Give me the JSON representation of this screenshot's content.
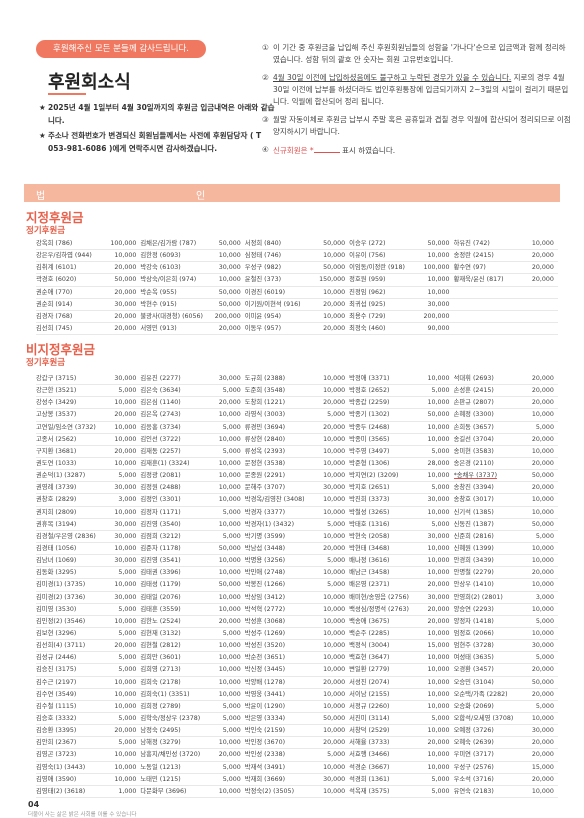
{
  "header": {
    "badge": "후원해주신 모든 분들께 감사드립니다.",
    "title": "후원회소식",
    "note1": "2025년 4월 1일부터 4월 30일까지의 후원금 입금내역은 아래와 같습니다.",
    "note2": "주소나 전화번호가 변경되신 회원님들께서는 사전에 후원담당자 ( T 053-981-6086 )에게 연락주시면 감사하겠습니다.",
    "star": "★"
  },
  "notes": {
    "n1": {
      "num": "①",
      "text": "이 기간 중 후원금을 납입해 주신 후원회원님들의 성함을 '가나다'순으로 입금액과 함께 정리하였습니다. 성함 뒤의 괄호 안 숫자는 회원 고유번호입니다."
    },
    "n2": {
      "num": "②",
      "under": "4월 30일 이전에 납입하셨음에도 불구하고 누락된 경우가 있을 수 있습니다.",
      "text": "지로의 경우 4월 30일 이전에 납부를 하셨더라도 법인후원통장에 입금되기까지 2~3일의 시일이 걸리기 때문입니다. 익월에 합산되어 정리 됩니다."
    },
    "n3": {
      "num": "③",
      "text": "월말 자동이체로 후원금 납부시 주말 혹은 공휴일과 겹칠 경우 익월에 합산되어 정리되므로 이점 양지하시기 바랍니다."
    },
    "n4": {
      "num": "④",
      "pre": "신규회원은 *",
      "post": "표시 하였습니다."
    }
  },
  "banner": {
    "left": "법",
    "right": "인"
  },
  "sections": {
    "s1_title": "지정후원금",
    "s1_sub": "정기후원금",
    "s2_title": "비지정후원금",
    "s2_sub": "정기후원금"
  },
  "designated": [
    [
      "강옥희 (786)|100,000",
      "김채은/김가람 (787)|50,000",
      "서정희 (840)|50,000",
      "이승우 (272)|50,000",
      "하유진 (742)|10,000"
    ],
    [
      "강은우/김하엽 (944)|10,000",
      "김한정 (6093)|10,000",
      "심정태 (746)|10,000",
      "이유이 (756)|10,000",
      "송정란 (2415)|20,000"
    ],
    [
      "김취계 (6101)|20,000",
      "박강숙 (6103)|30,000",
      "우성구 (982)|50,000",
      "이임동/이정란 (918)|100,000",
      "황수연 (97)|20,000"
    ],
    [
      "곽경호 (6020)|50,000",
      "박상숙/이은희 (974)|10,000",
      "윤철진 (373)|150,000",
      "정호원 (959)|10,000",
      "황재욱/윤신 (817)|20,000"
    ],
    [
      "권순애 (770)|20,000",
      "박순옥 (955)|50,000",
      "이경진 (6019)|10,000",
      "진정임 (962)|10,000",
      ""
    ],
    [
      "권순희 (914)|30,000",
      "박현수 (915)|50,000",
      "이기원/이현석 (916)|20,000",
      "최귀섭 (925)|30,000",
      ""
    ],
    [
      "김경자 (768)|20,000",
      "불광사(대경청) (6056)|200,000",
      "이미윤 (954)|10,000",
      "최용수 (729)|200,000",
      ""
    ],
    [
      "김선희 (745)|20,000",
      "서영민 (913)|20,000",
      "이동우 (957)|20,000",
      "최정숙 (460)|90,000",
      ""
    ]
  ],
  "nondesignated": [
    [
      "강갑구 (3715)|30,000",
      "김유진 (2277)|30,000",
      "도규희 (2388)|10,000",
      "박정애 (3371)|10,000",
      "석대휘 (2693)|20,000"
    ],
    [
      "강근한 (3521)|5,000",
      "김은숙 (3634)|5,000",
      "도준희 (3548)|10,000",
      "박정호 (2652)|5,000",
      "손성훈 (2415)|20,000"
    ],
    [
      "강성수 (3429)|10,000",
      "김은심 (1140)|20,000",
      "도창희 (1221)|20,000",
      "박종갑 (2259)|10,000",
      "손판규 (2807)|20,000"
    ],
    [
      "고상봉 (3537)|20,000",
      "김은옥 (2743)|10,000",
      "라영식 (3003)|5,000",
      "박종기 (1302)|50,000",
      "손혜정 (3300)|10,000"
    ],
    [
      "고연일/임소연 (3732)|10,000",
      "김응홍 (3734)|5,000",
      "류경민 (3694)|20,000",
      "박종두 (2468)|10,000",
      "손희동 (3657)|5,000"
    ],
    [
      "고종서 (2562)|10,000",
      "김인선 (3722)|10,000",
      "류상현 (2840)|10,000",
      "박종미 (3565)|10,000",
      "송길선 (3704)|20,000"
    ],
    [
      "구지환 (3681)|20,000",
      "김재동 (2257)|5,000",
      "류성옥 (2393)|10,000",
      "박주영 (3497)|5,000",
      "송미현 (3583)|10,000"
    ],
    [
      "권도연 (1033)|10,000",
      "김재훈(1) (3324)|10,000",
      "문정현 (3538)|10,000",
      "박준형 (1306)|28,000",
      "송은경 (2110)|20,000"
    ],
    [
      "권순덕(1) (3287)|5,000",
      "김정광 (2081)|10,000",
      "문종원 (2291)|10,000",
      "박지연(2) (3209)|10,000",
      "*송채우 (3737)|50,000"
    ],
    [
      "권영례 (3739)|30,000",
      "김정원 (2488)|10,000",
      "문해주 (3707)|30,000",
      "박지호 (2651)|5,000",
      "송창진 (3394)|20,000"
    ],
    [
      "권창호 (2829)|3,000",
      "김정인 (3301)|10,000",
      "박경옥/김영찬 (3408)|10,000",
      "박진희 (3373)|30,000",
      "송창호 (3017)|10,000"
    ],
    [
      "권지희 (2809)|10,000",
      "김정자 (1171)|5,000",
      "박경자 (3377)|10,000",
      "박철성 (3265)|10,000",
      "신기석 (1385)|10,000"
    ],
    [
      "권휴목 (3194)|30,000",
      "김진영 (3540)|10,000",
      "박경자(1) (3432)|5,000",
      "박태호 (1316)|5,000",
      "신동진 (1387)|50,000"
    ],
    [
      "김경철/우은영 (2836)|30,000",
      "김점희 (3212)|5,000",
      "박기명 (3599)|10,000",
      "박현숙 (2058)|30,000",
      "신준희 (2816)|5,000"
    ],
    [
      "김경태 (1056)|10,000",
      "김준자 (1178)|50,000",
      "박남섭 (3448)|20,000",
      "박현태 (3468)|10,000",
      "신혜원 (1399)|10,000"
    ],
    [
      "김남녀 (1069)|30,000",
      "김진영 (3541)|10,000",
      "박명용 (3256)|5,000",
      "배나정 (3616)|10,000",
      "안경희 (3439)|10,000"
    ],
    [
      "김동화 (3295)|5,000",
      "김태권 (3396)|10,000",
      "박민애 (2748)|10,000",
      "배남근 (3458)|10,000",
      "안명철 (2279)|20,000"
    ],
    [
      "김미경(1) (3735)|10,000",
      "김태성 (1179)|50,000",
      "박봉진 (1266)|5,000",
      "배은영 (2371)|20,000",
      "안상우 (1410)|10,000"
    ],
    [
      "김미경(2) (3736)|30,000",
      "김태일 (2076)|10,000",
      "박상임 (3412)|10,000",
      "배미현/송영음 (2756)|30,000",
      "안영희(2) (2801)|3,000"
    ],
    [
      "김미영 (3530)|5,000",
      "김태훈 (3559)|10,000",
      "박석혁 (2772)|10,000",
      "백성심/정명석 (2763)|20,000",
      "양승연 (2293)|10,000"
    ],
    [
      "김민정(2) (3546)|10,000",
      "김한노 (2524)|20,000",
      "박성훈 (3068)|10,000",
      "백송애 (3675)|20,000",
      "양정자 (1418)|5,000"
    ],
    [
      "김보현 (3296)|5,000",
      "김현재 (3132)|5,000",
      "박성주 (1269)|10,000",
      "백순주 (2285)|10,000",
      "엄정호 (2066)|10,000"
    ],
    [
      "김선희(4) (3711)|20,000",
      "김현철 (2812)|10,000",
      "박성진 (3520)|10,000",
      "백정식 (3004)|15,000",
      "엄현주 (3728)|30,000"
    ],
    [
      "김성규 (2446)|5,000",
      "김희만 (3601)|10,000",
      "박순천 (3651)|10,000",
      "백효현 (3647)|10,000",
      "여성태 (3635)|5,000"
    ],
    [
      "김승진 (3175)|5,000",
      "김희영 (2713)|10,000",
      "박신정 (3445)|10,000",
      "변일환 (2779)|10,000",
      "오경환 (3457)|20,000"
    ],
    [
      "김수근 (2197)|10,000",
      "김희숙 (2178)|10,000",
      "박양배 (1278)|20,000",
      "서성진 (2074)|10,000",
      "오승민 (3104)|50,000"
    ],
    [
      "김수연 (3549)|10,000",
      "김희숙(1) (3351)|10,000",
      "박영웅 (3441)|10,000",
      "서이남 (2155)|10,000",
      "오순택/가족 (2282)|20,000"
    ],
    [
      "김수철 (1115)|10,000",
      "김희정 (2789)|5,000",
      "박윤이 (1290)|10,000",
      "서정규 (2260)|10,000",
      "오승화 (2069)|5,000"
    ],
    [
      "김승호 (3332)|5,000",
      "김학숙/정상우 (2378)|5,000",
      "박은영 (3334)|50,000",
      "서진미 (3114)|5,000",
      "오합석/오세영 (3708)|10,000"
    ],
    [
      "김승환 (3395)|20,000",
      "남정숙 (2495)|5,000",
      "박인숙 (2159)|10,000",
      "서창덕 (2529)|10,000",
      "오예정 (3726)|30,000"
    ],
    [
      "김안희 (2367)|5,000",
      "남해정 (3279)|10,000",
      "박인정 (3670)|20,000",
      "서해율 (3733)|20,000",
      "오혜숙 (2639)|20,000"
    ],
    [
      "김영곤 (3723)|10,000",
      "남흥지/채민성 (3720)|20,000",
      "박인성 (2338)|5,000",
      "서효행 (3466)|10,000",
      "우미연 (3717)|20,000"
    ],
    [
      "김영숙(1) (3443)|10,000",
      "노동일 (1213)|5,000",
      "박재석 (3491)|10,000",
      "석경순 (3667)|10,000",
      "우성구 (2576)|15,000"
    ],
    [
      "김영애 (3590)|10,000",
      "노태민 (1215)|5,000",
      "박재희 (3669)|30,000",
      "석경희 (1361)|5,000",
      "우소석 (3716)|20,000"
    ],
    [
      "김영태(2) (3618)|1,000",
      "다문화부 (3696)|10,000",
      "박정숙(2) (3505)|10,000",
      "석옥재 (3575)|5,000",
      "유연숙 (2183)|10,000"
    ]
  ],
  "footer": {
    "page": "04",
    "tagline": "더불어 사는 삶은 밝은 사회를 이룰 수 있습니다"
  }
}
